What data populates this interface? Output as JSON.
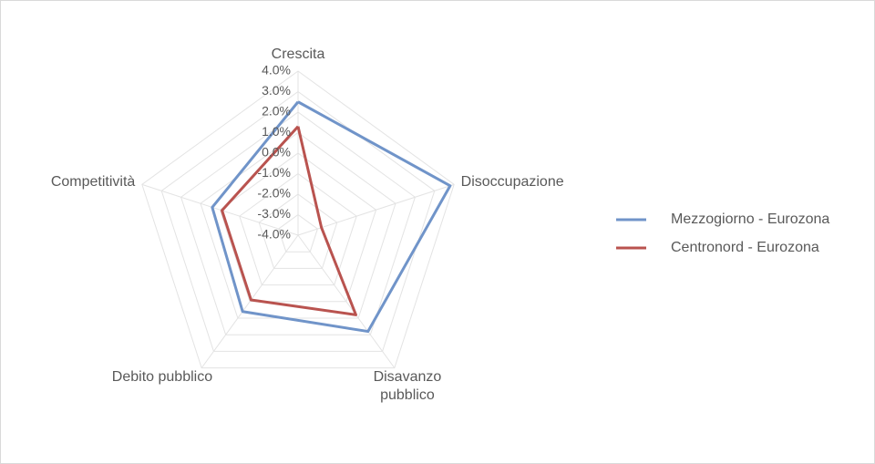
{
  "chart_data": {
    "type": "radar",
    "categories": [
      "Crescita",
      "Disoccupazione",
      "Disavanzo pubblico",
      "Debito pubblico",
      "Competitività"
    ],
    "series": [
      {
        "name": "Mezzogiorno - Eurozona",
        "color": "#7094c9",
        "values": [
          2.5,
          3.8,
          1.8,
          0.6,
          0.4
        ]
      },
      {
        "name": "Centronord - Eurozona",
        "color": "#b9534f",
        "values": [
          1.3,
          -2.8,
          0.8,
          -0.1,
          -0.1
        ]
      }
    ],
    "ylim": [
      -4,
      4
    ],
    "yticks": [
      {
        "value": -4,
        "label": "-4.0%"
      },
      {
        "value": -3,
        "label": "-3.0%"
      },
      {
        "value": -2,
        "label": "-2.0%"
      },
      {
        "value": -1,
        "label": "-1.0%"
      },
      {
        "value": 0,
        "label": "0.0%"
      },
      {
        "value": 1,
        "label": "1.0%"
      },
      {
        "value": 2,
        "label": "2.0%"
      },
      {
        "value": 3,
        "label": "3.0%"
      },
      {
        "value": 4,
        "label": "4.0%"
      }
    ],
    "grid": true,
    "legend": "right"
  }
}
